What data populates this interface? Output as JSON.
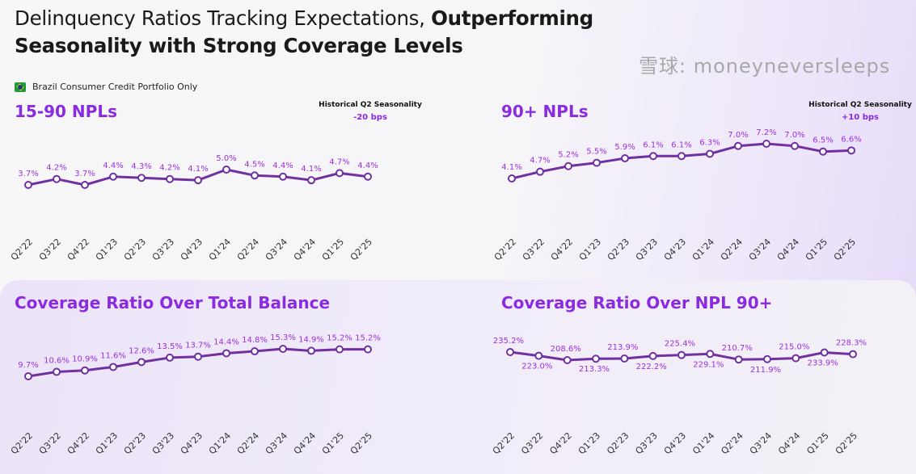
{
  "title": {
    "normal": "Delinquency Ratios Tracking Expectations, ",
    "bold": "Outperforming",
    "line2": "Seasonality with Strong Coverage Levels"
  },
  "subtitle": "Brazil Consumer Credit Portfolio Only",
  "colors": {
    "line": "#7030a0",
    "label": "#9b30e0",
    "title": "#8a2be2"
  },
  "seasonality": [
    {
      "label": "Historical Q2 Seasonality",
      "value": "-20 bps"
    },
    {
      "label": "Historical Q2 Seasonality",
      "value": "+10 bps"
    }
  ],
  "watermark": "雪球: moneyneversleeps",
  "chart_data": [
    {
      "type": "line",
      "title": "15-90 NPLs",
      "categories": [
        "Q2'22",
        "Q3'22",
        "Q4'22",
        "Q1'23",
        "Q2'23",
        "Q3'23",
        "Q4'23",
        "Q1'24",
        "Q2'24",
        "Q3'24",
        "Q4'24",
        "Q1'25",
        "Q2'25"
      ],
      "values": [
        3.7,
        4.2,
        3.7,
        4.4,
        4.3,
        4.2,
        4.1,
        5.0,
        4.5,
        4.4,
        4.1,
        4.7,
        4.4
      ],
      "labels": [
        "3.7%",
        "4.2%",
        "3.7%",
        "4.4%",
        "4.3%",
        "4.2%",
        "4.1%",
        "5.0%",
        "4.5%",
        "4.4%",
        "4.1%",
        "4.7%",
        "4.4%"
      ]
    },
    {
      "type": "line",
      "title": "90+ NPLs",
      "categories": [
        "Q2'22",
        "Q3'22",
        "Q4'22",
        "Q1'23",
        "Q2'23",
        "Q3'23",
        "Q4'23",
        "Q1'24",
        "Q2'24",
        "Q3'24",
        "Q4'24",
        "Q1'25",
        "Q2'25"
      ],
      "values": [
        4.1,
        4.7,
        5.2,
        5.5,
        5.9,
        6.1,
        6.1,
        6.3,
        7.0,
        7.2,
        7.0,
        6.5,
        6.6
      ],
      "labels": [
        "4.1%",
        "4.7%",
        "5.2%",
        "5.5%",
        "5.9%",
        "6.1%",
        "6.1%",
        "6.3%",
        "7.0%",
        "7.2%",
        "7.0%",
        "6.5%",
        "6.6%"
      ]
    },
    {
      "type": "line",
      "title": "Coverage Ratio Over Total Balance",
      "categories": [
        "Q2'22",
        "Q3'22",
        "Q4'22",
        "Q1'23",
        "Q2'23",
        "Q3'23",
        "Q4'23",
        "Q1'24",
        "Q2'24",
        "Q3'24",
        "Q4'24",
        "Q1'25",
        "Q2'25"
      ],
      "values": [
        9.7,
        10.6,
        10.9,
        11.6,
        12.6,
        13.5,
        13.7,
        14.4,
        14.8,
        15.3,
        14.9,
        15.2,
        15.2
      ],
      "labels": [
        "9.7%",
        "10.6%",
        "10.9%",
        "11.6%",
        "12.6%",
        "13.5%",
        "13.7%",
        "14.4%",
        "14.8%",
        "15.3%",
        "14.9%",
        "15.2%",
        "15.2%"
      ]
    },
    {
      "type": "line",
      "title": "Coverage Ratio Over NPL 90+",
      "categories": [
        "Q2'22",
        "Q3'22",
        "Q4'22",
        "Q1'23",
        "Q2'23",
        "Q3'23",
        "Q4'23",
        "Q1'24",
        "Q2'24",
        "Q3'24",
        "Q4'24",
        "Q1'25",
        "Q2'25"
      ],
      "values": [
        235.2,
        223.0,
        208.6,
        213.3,
        213.9,
        222.2,
        225.4,
        229.1,
        210.7,
        211.9,
        215.0,
        233.9,
        228.3
      ],
      "labels": [
        "235.2%",
        "223.0%",
        "208.6%",
        "213.3%",
        "213.9%",
        "222.2%",
        "225.4%",
        "229.1%",
        "210.7%",
        "211.9%",
        "215.0%",
        "233.9%",
        "228.3%"
      ]
    }
  ]
}
